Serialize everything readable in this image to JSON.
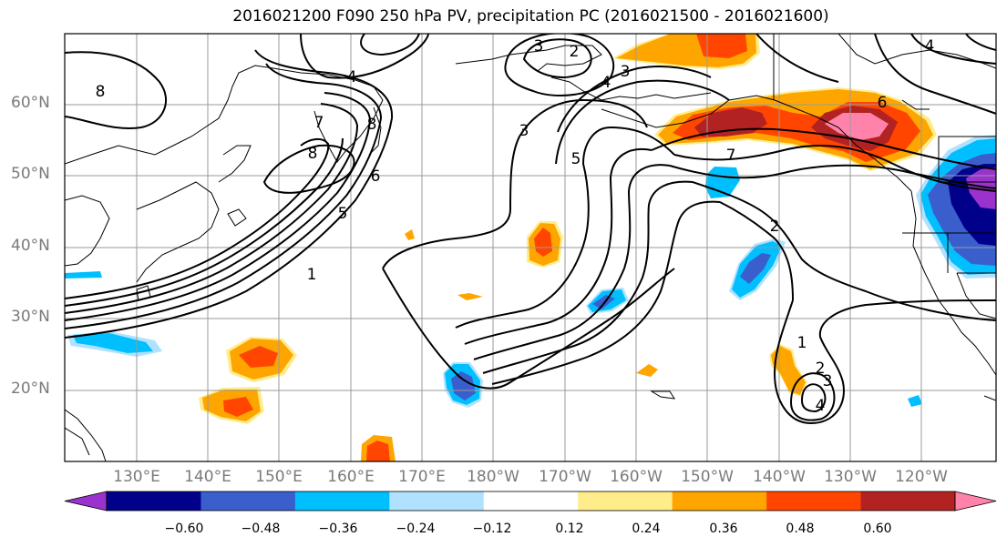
{
  "title": "2016021200 F090 250 hPa PV, precipitation PC (2016021500 - 2016021600)",
  "lat_labels": [
    "60°N",
    "50°N",
    "40°N",
    "30°N",
    "20°N"
  ],
  "lon_labels": [
    "130°E",
    "140°E",
    "150°E",
    "160°E",
    "170°E",
    "180°W",
    "170°W",
    "160°W",
    "150°W",
    "140°W",
    "130°W",
    "120°W"
  ],
  "colorbar": {
    "tick_labels": [
      "−0.60",
      "−0.48",
      "−0.36",
      "−0.24",
      "−0.12",
      "0.12",
      "0.24",
      "0.36",
      "0.48",
      "0.60"
    ],
    "colors": [
      "#9a32cd",
      "#00008b",
      "#3a5fcd",
      "#00bfff",
      "#b0e2ff",
      "#ffffff",
      "#ffec8b",
      "#ffa500",
      "#ff4500",
      "#b22222",
      "#ff82ab"
    ]
  },
  "contour_labels": [
    {
      "text": "8"
    },
    {
      "text": "4"
    },
    {
      "text": "7"
    },
    {
      "text": "8"
    },
    {
      "text": "8"
    },
    {
      "text": "6"
    },
    {
      "text": "5"
    },
    {
      "text": "1"
    },
    {
      "text": "3"
    },
    {
      "text": "2"
    },
    {
      "text": "3"
    },
    {
      "text": "4"
    },
    {
      "text": "3"
    },
    {
      "text": "5"
    },
    {
      "text": "7"
    },
    {
      "text": "6"
    },
    {
      "text": "2"
    },
    {
      "text": "1"
    },
    {
      "text": "2"
    },
    {
      "text": "3"
    },
    {
      "text": "4"
    },
    {
      "text": "4"
    }
  ]
}
